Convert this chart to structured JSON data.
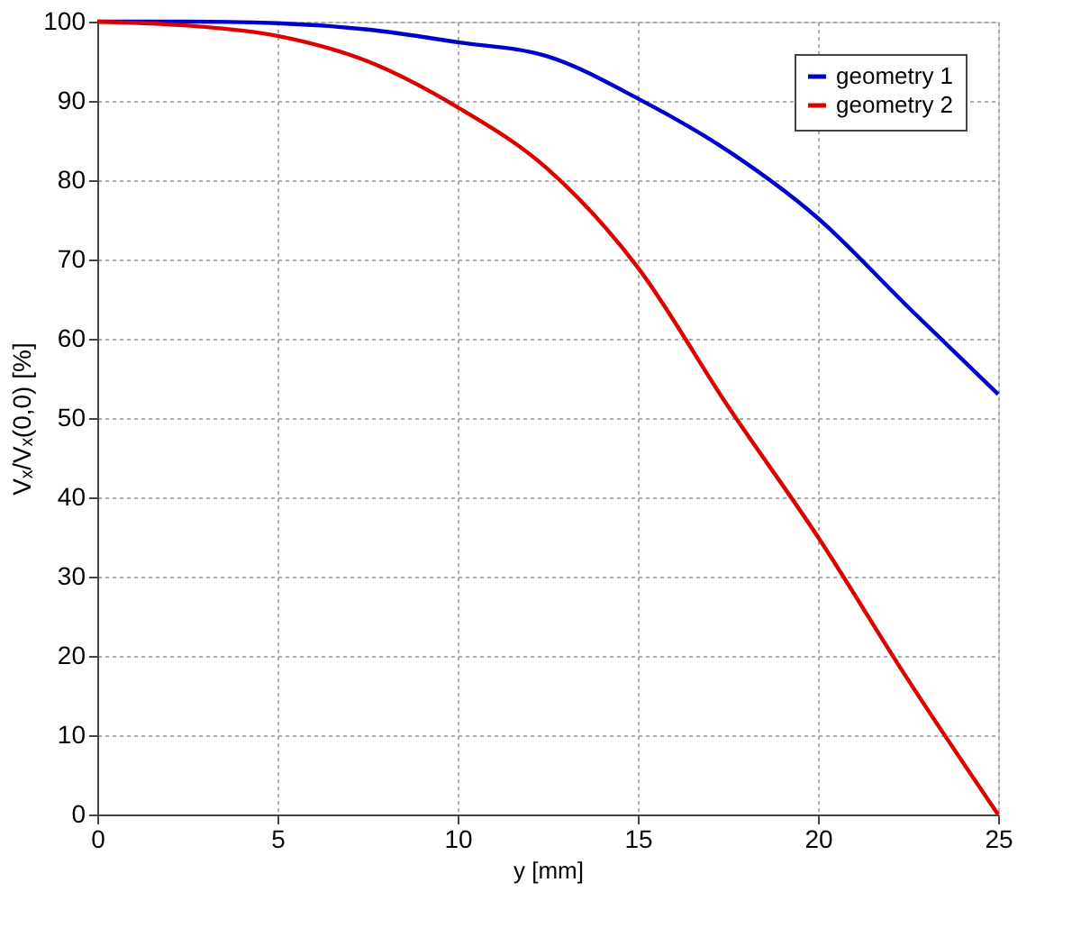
{
  "chart_data": {
    "type": "line",
    "xlabel": "y [mm]",
    "ylabel": "Vₓ/Vₓ(0,0) [%]",
    "x": [
      0,
      2.5,
      5,
      7.5,
      10,
      12.5,
      15,
      17.5,
      20,
      22.5,
      25
    ],
    "series": [
      {
        "name": "geometry 1",
        "color": "#0000cc",
        "values": [
          100,
          100,
          99.8,
          99,
          97.4,
          95.6,
          90.3,
          83.7,
          75.2,
          64,
          53
        ]
      },
      {
        "name": "geometry 2",
        "color": "#dd0000",
        "values": [
          100,
          99.5,
          98.2,
          95,
          89.2,
          81.4,
          69,
          51.5,
          35,
          17,
          0
        ]
      }
    ],
    "xlim": [
      0,
      25
    ],
    "xticks": [
      0,
      5,
      10,
      15,
      20,
      25
    ],
    "ylim": [
      0,
      100
    ],
    "yticks": [
      0,
      10,
      20,
      30,
      40,
      50,
      60,
      70,
      80,
      90,
      100
    ],
    "grid": true,
    "legend": "top right",
    "line_style": "solid",
    "marker": "none"
  }
}
